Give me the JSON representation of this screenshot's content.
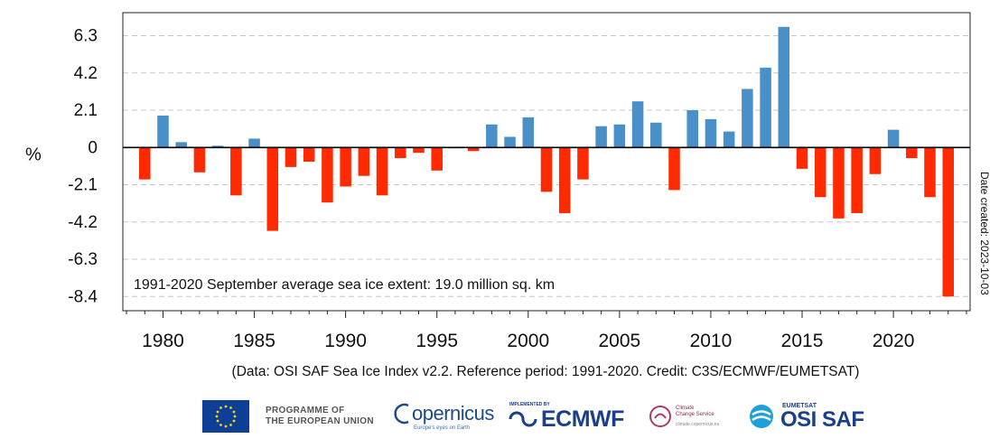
{
  "chart_data": {
    "type": "bar",
    "title": "",
    "ylabel": "%",
    "xlabel": "",
    "ylim": [
      -9.2,
      7.6
    ],
    "xlim": [
      1977.8,
      2024.2
    ],
    "yticks": [
      6.3,
      4.2,
      2.1,
      0,
      -2.1,
      -4.2,
      -6.3,
      -8.4
    ],
    "ytick_labels": [
      "6.3",
      "4.2",
      "2.1",
      "0",
      "-2.1",
      "-4.2",
      "-6.3",
      "-8.4"
    ],
    "xticks": [
      1980,
      1985,
      1990,
      1995,
      2000,
      2005,
      2010,
      2015,
      2020
    ],
    "xtick_labels": [
      "1980",
      "1985",
      "1990",
      "1995",
      "2000",
      "2005",
      "2010",
      "2015",
      "2020"
    ],
    "grid": "horizontal dashed",
    "positive_color": "#4a90c8",
    "negative_color": "#ff2a00",
    "annotation": "1991-2020 September average sea ice extent: 19.0 million sq. km",
    "side_label": "Date created: 2023-10-03",
    "caption": "(Data: OSI SAF Sea Ice Index v2.2.  Reference period: 1991-2020.  Credit: C3S/ECMWF/EUMETSAT)",
    "categories": [
      1979,
      1980,
      1981,
      1982,
      1983,
      1984,
      1985,
      1986,
      1987,
      1988,
      1989,
      1990,
      1991,
      1992,
      1993,
      1994,
      1995,
      1996,
      1997,
      1998,
      1999,
      2000,
      2001,
      2002,
      2003,
      2004,
      2005,
      2006,
      2007,
      2008,
      2009,
      2010,
      2011,
      2012,
      2013,
      2014,
      2015,
      2016,
      2017,
      2018,
      2019,
      2020,
      2021,
      2022,
      2023
    ],
    "values": [
      -1.8,
      1.8,
      0.3,
      -1.4,
      0.1,
      -2.7,
      0.5,
      -4.7,
      -1.1,
      -0.8,
      -3.1,
      -2.2,
      -1.6,
      -2.7,
      -0.6,
      -0.3,
      -1.3,
      0.0,
      -0.2,
      1.3,
      0.6,
      1.7,
      -2.5,
      -3.7,
      -1.8,
      1.2,
      1.3,
      2.6,
      1.4,
      -2.4,
      2.1,
      1.6,
      0.9,
      3.3,
      4.5,
      6.8,
      -1.2,
      -2.8,
      -4.0,
      -3.7,
      -1.5,
      1.0,
      -0.6,
      -2.8,
      -8.4
    ]
  },
  "logos": {
    "eu_line1": "PROGRAMME OF",
    "eu_line2": "THE EUROPEAN UNION",
    "copernicus": "opernicus",
    "copernicus_tag": "Europe's eyes on Earth",
    "ecmwf_top": "IMPLEMENTED BY",
    "ecmwf": "ECMWF",
    "c3s_line1": "Climate",
    "c3s_line2": "Change Service",
    "c3s_sub": "climate.copernicus.eu",
    "osi_top": "EUMETSAT",
    "osi": "OSI SAF"
  }
}
